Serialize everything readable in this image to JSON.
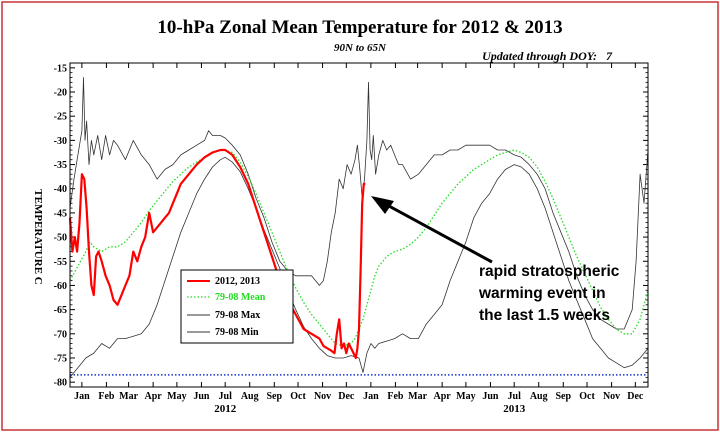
{
  "colors": {
    "frame": "#cc3333",
    "obs": "#ff0000",
    "mean": "#22dd22",
    "max": "#333333",
    "min": "#333333",
    "reference": "#1133cc",
    "text": "#000000"
  },
  "chart_data": {
    "type": "line",
    "title": "10-hPa Zonal Mean Temperature for 2012 & 2013",
    "subtitle": "90N to 65N",
    "updated": "Updated through DOY:   7",
    "ylabel": "TEMPERATURE C",
    "ylim": [
      -81,
      -14
    ],
    "xlim": [
      0,
      730
    ],
    "yticks": [
      -15,
      -20,
      -25,
      -30,
      -35,
      -40,
      -45,
      -50,
      -55,
      -60,
      -65,
      -70,
      -75,
      -80
    ],
    "ytick_labels": [
      "-15",
      "-20",
      "-25",
      "-30",
      "-35",
      "-40",
      "-45",
      "-50",
      "-55",
      "-60",
      "-65",
      "-70",
      "-75",
      "-80"
    ],
    "xticks": [
      {
        "day": 15,
        "label": "Jan"
      },
      {
        "day": 46,
        "label": "Feb"
      },
      {
        "day": 74,
        "label": "Mar"
      },
      {
        "day": 105,
        "label": "Apr"
      },
      {
        "day": 135,
        "label": "May"
      },
      {
        "day": 166,
        "label": "Jun"
      },
      {
        "day": 196,
        "label": "Jul"
      },
      {
        "day": 227,
        "label": "Aug"
      },
      {
        "day": 258,
        "label": "Sep"
      },
      {
        "day": 288,
        "label": "Oct"
      },
      {
        "day": 319,
        "label": "Nov"
      },
      {
        "day": 349,
        "label": "Dec"
      },
      {
        "day": 380,
        "label": "Jan"
      },
      {
        "day": 411,
        "label": "Feb"
      },
      {
        "day": 439,
        "label": "Mar"
      },
      {
        "day": 470,
        "label": "Apr"
      },
      {
        "day": 500,
        "label": "May"
      },
      {
        "day": 531,
        "label": "Jun"
      },
      {
        "day": 561,
        "label": "Jul"
      },
      {
        "day": 592,
        "label": "Aug"
      },
      {
        "day": 623,
        "label": "Sep"
      },
      {
        "day": 653,
        "label": "Oct"
      },
      {
        "day": 684,
        "label": "Nov"
      },
      {
        "day": 714,
        "label": "Dec"
      }
    ],
    "year_labels": [
      {
        "day": 196,
        "label": "2012"
      },
      {
        "day": 561,
        "label": "2013"
      }
    ],
    "reference_line": {
      "y": -78.5
    },
    "annotation": {
      "lines": [
        "rapid stratospheric",
        "warming event in",
        "the last 1.5 weeks"
      ],
      "arrow_to": {
        "x": 369,
        "y": -42
      }
    },
    "legend": {
      "position": "lower-left",
      "entries": [
        "2012, 2013",
        "79-08 Mean",
        "79-08 Max",
        "79-08 Min"
      ]
    },
    "series": [
      {
        "name": "2012, 2013",
        "style": "solid-thick",
        "x": [
          0,
          3,
          6,
          9,
          12,
          15,
          18,
          21,
          24,
          27,
          30,
          33,
          36,
          40,
          45,
          50,
          55,
          60,
          65,
          70,
          75,
          80,
          85,
          90,
          95,
          100,
          105,
          110,
          115,
          120,
          125,
          130,
          135,
          140,
          145,
          150,
          160,
          170,
          180,
          190,
          196,
          205,
          215,
          225,
          235,
          245,
          255,
          265,
          275,
          285,
          295,
          305,
          315,
          320,
          325,
          330,
          334,
          337,
          340,
          343,
          346,
          349,
          352,
          355,
          358,
          361,
          363,
          365,
          367,
          369,
          371,
          373
        ],
        "y": [
          -46,
          -53,
          -50,
          -53,
          -47,
          -37,
          -38,
          -44,
          -53,
          -60,
          -62,
          -54,
          -53,
          -55,
          -58,
          -60,
          -63,
          -64,
          -62,
          -60,
          -58,
          -53,
          -55,
          -52,
          -50,
          -45,
          -49,
          -48,
          -47,
          -46,
          -45,
          -43,
          -41,
          -39,
          -38,
          -37,
          -35,
          -33.5,
          -32.5,
          -32,
          -32,
          -33,
          -35.5,
          -39,
          -44,
          -49,
          -54,
          -59,
          -63,
          -66,
          -69,
          -70,
          -71,
          -72.5,
          -73,
          -73.5,
          -74,
          -70,
          -67,
          -73,
          -72,
          -74,
          -72,
          -73,
          -74,
          -75,
          -73,
          -69,
          -57,
          -43,
          -39,
          -39
        ]
      },
      {
        "name": "79-08 Mean",
        "style": "dotted",
        "x": [
          0,
          10,
          20,
          25,
          30,
          40,
          50,
          60,
          70,
          80,
          90,
          100,
          110,
          120,
          130,
          140,
          150,
          160,
          170,
          180,
          190,
          196,
          205,
          215,
          225,
          235,
          245,
          255,
          265,
          275,
          285,
          295,
          305,
          315,
          325,
          335,
          345,
          355,
          360,
          365,
          370,
          375,
          380,
          385,
          390,
          395,
          400,
          410,
          420,
          430,
          440,
          450,
          460,
          470,
          480,
          490,
          500,
          510,
          520,
          530,
          540,
          550,
          561,
          570,
          580,
          590,
          600,
          610,
          620,
          630,
          640,
          650,
          660,
          670,
          680,
          690,
          700,
          710,
          720,
          730
        ],
        "y": [
          -59,
          -56,
          -53,
          -51,
          -52,
          -53,
          -52,
          -52,
          -51,
          -49,
          -47,
          -44.5,
          -42.5,
          -40.5,
          -38.5,
          -37,
          -35.5,
          -34.5,
          -33.5,
          -32.5,
          -32,
          -32,
          -32.5,
          -34.5,
          -37.5,
          -41,
          -45,
          -49,
          -53,
          -57,
          -60.5,
          -63.5,
          -66,
          -68,
          -70,
          -72,
          -72.5,
          -72,
          -71,
          -69,
          -67,
          -64,
          -61,
          -58,
          -56,
          -55,
          -54,
          -53,
          -52.5,
          -51.5,
          -50,
          -48,
          -45.5,
          -43,
          -41,
          -39,
          -37.5,
          -36,
          -35,
          -34,
          -33,
          -32.5,
          -32,
          -32.5,
          -33.5,
          -35.5,
          -38.5,
          -42,
          -46,
          -50,
          -54,
          -57.5,
          -61,
          -64.5,
          -67,
          -69,
          -70,
          -70,
          -67,
          -61
        ]
      },
      {
        "name": "79-08 Max",
        "style": "thin-noisy",
        "x": [
          0,
          5,
          10,
          15,
          17,
          19,
          21,
          24,
          27,
          30,
          35,
          40,
          45,
          50,
          55,
          60,
          70,
          80,
          90,
          100,
          110,
          120,
          130,
          140,
          150,
          160,
          170,
          175,
          180,
          190,
          196,
          205,
          215,
          225,
          235,
          245,
          255,
          265,
          275,
          285,
          295,
          305,
          315,
          320,
          325,
          330,
          335,
          340,
          345,
          350,
          355,
          360,
          363,
          366,
          369,
          372,
          375,
          377,
          379,
          381,
          383,
          386,
          390,
          395,
          400,
          405,
          410,
          415,
          420,
          430,
          440,
          450,
          460,
          470,
          480,
          490,
          500,
          510,
          520,
          530,
          540,
          550,
          561,
          570,
          580,
          590,
          600,
          610,
          620,
          630,
          640,
          650,
          660,
          670,
          680,
          690,
          700,
          710,
          715,
          720,
          725,
          730
        ],
        "y": [
          -44,
          -38,
          -33,
          -28,
          -17,
          -30,
          -26,
          -35,
          -30,
          -33,
          -29,
          -34,
          -29,
          -33,
          -30,
          -31,
          -34,
          -30,
          -33,
          -35,
          -38,
          -36,
          -35,
          -33,
          -32,
          -31,
          -30,
          -28,
          -29,
          -29,
          -29.5,
          -31,
          -33,
          -37,
          -42,
          -46,
          -51,
          -55,
          -57,
          -58,
          -58,
          -58,
          -60,
          -59,
          -55,
          -49,
          -45,
          -38,
          -40,
          -35,
          -37,
          -34,
          -31,
          -36,
          -42,
          -38,
          -30,
          -18,
          -32,
          -34,
          -29,
          -37,
          -33,
          -30,
          -32,
          -31,
          -33,
          -35,
          -35,
          -38,
          -37,
          -35,
          -33,
          -33,
          -32,
          -32,
          -31,
          -31,
          -31,
          -31,
          -32,
          -32,
          -33,
          -33.5,
          -35,
          -37,
          -40,
          -45,
          -49,
          -53,
          -58,
          -62,
          -65,
          -67,
          -68,
          -69,
          -69,
          -65,
          -55,
          -37,
          -43,
          -32
        ]
      },
      {
        "name": "79-08 Min",
        "style": "thin-noisy",
        "x": [
          0,
          10,
          20,
          30,
          40,
          50,
          60,
          70,
          80,
          90,
          100,
          110,
          120,
          130,
          140,
          150,
          160,
          170,
          180,
          190,
          196,
          205,
          215,
          225,
          235,
          245,
          255,
          265,
          275,
          285,
          295,
          305,
          315,
          325,
          335,
          345,
          355,
          365,
          370,
          375,
          380,
          385,
          390,
          400,
          410,
          420,
          430,
          440,
          450,
          460,
          470,
          480,
          490,
          500,
          510,
          520,
          530,
          540,
          550,
          561,
          570,
          580,
          590,
          600,
          610,
          620,
          630,
          640,
          650,
          660,
          670,
          680,
          690,
          700,
          710,
          720,
          730
        ],
        "y": [
          -79,
          -77,
          -75,
          -74,
          -72,
          -73,
          -71,
          -71,
          -70.5,
          -70,
          -68,
          -64,
          -59,
          -54,
          -49,
          -45,
          -41,
          -38,
          -35.5,
          -34,
          -33.5,
          -34.5,
          -36.5,
          -40,
          -44,
          -48.5,
          -52.5,
          -56.5,
          -61,
          -65,
          -68.5,
          -71,
          -73,
          -74.5,
          -75,
          -75,
          -74.5,
          -75,
          -78,
          -74,
          -72,
          -73,
          -72,
          -71.5,
          -71,
          -70,
          -71,
          -71,
          -68,
          -66,
          -64,
          -59,
          -55,
          -51,
          -46,
          -43,
          -41,
          -38,
          -36,
          -35,
          -35.5,
          -37,
          -40,
          -44,
          -49,
          -54,
          -59,
          -63,
          -67,
          -71,
          -73,
          -75,
          -76,
          -77,
          -76.5,
          -75,
          -73
        ]
      }
    ]
  }
}
